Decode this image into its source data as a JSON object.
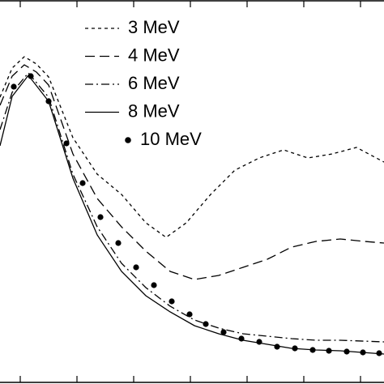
{
  "chart_data": {
    "type": "line",
    "xlim": [
      0,
      474
    ],
    "ylim": [
      0,
      474
    ],
    "xticks": [
      25,
      95,
      165,
      235,
      305,
      375,
      445
    ],
    "series": [
      {
        "name": "3 MeV",
        "color": "#000000",
        "dash": "4 4",
        "marker": "none",
        "x": [
          0,
          15,
          30,
          45,
          60,
          90,
          120,
          150,
          180,
          205,
          230,
          260,
          290,
          320,
          350,
          380,
          410,
          440,
          474
        ],
        "values": [
          354,
          390,
          404,
          395,
          379,
          304,
          259,
          234,
          199,
          181,
          199,
          234,
          264,
          279,
          289,
          279,
          284,
          292,
          274
        ]
      },
      {
        "name": "4 MeV",
        "color": "#000000",
        "dash": "12 6",
        "marker": "none",
        "x": [
          0,
          15,
          30,
          45,
          60,
          90,
          120,
          150,
          180,
          210,
          240,
          270,
          300,
          330,
          360,
          390,
          420,
          450,
          474
        ],
        "values": [
          344,
          380,
          394,
          385,
          369,
          284,
          229,
          194,
          164,
          139,
          129,
          134,
          144,
          154,
          169,
          176,
          179,
          176,
          174
        ]
      },
      {
        "name": "6 MeV",
        "color": "#000000",
        "dash": "10 4 2 4",
        "marker": "none",
        "x": [
          0,
          15,
          35,
          60,
          90,
          120,
          150,
          180,
          210,
          240,
          270,
          300,
          330,
          360,
          390,
          420,
          474
        ],
        "values": [
          314,
          360,
          384,
          354,
          259,
          194,
          149,
          119,
          96,
          79,
          69,
          62,
          59,
          56,
          54,
          54,
          52
        ]
      },
      {
        "name": "8 MeV",
        "color": "#000000",
        "dash": "none",
        "marker": "none",
        "x": [
          0,
          15,
          35,
          60,
          90,
          120,
          150,
          180,
          210,
          240,
          270,
          300,
          330,
          360,
          390,
          420,
          474
        ],
        "values": [
          294,
          355,
          381,
          349,
          254,
          184,
          139,
          109,
          89,
          72,
          62,
          54,
          49,
          44,
          42,
          41,
          37
        ]
      },
      {
        "name": "10 MeV",
        "color": "#000000",
        "dash": "none",
        "marker": "dot",
        "x": [
          17,
          38,
          60,
          82,
          102,
          124,
          146,
          168,
          190,
          212,
          234,
          254,
          276,
          298,
          320,
          342,
          364,
          386,
          406,
          428,
          448,
          468
        ],
        "values": [
          367,
          380,
          349,
          297,
          248,
          206,
          174,
          144,
          122,
          102,
          86,
          74,
          64,
          56,
          52,
          46,
          44,
          42,
          41,
          40,
          39,
          38
        ]
      }
    ]
  }
}
